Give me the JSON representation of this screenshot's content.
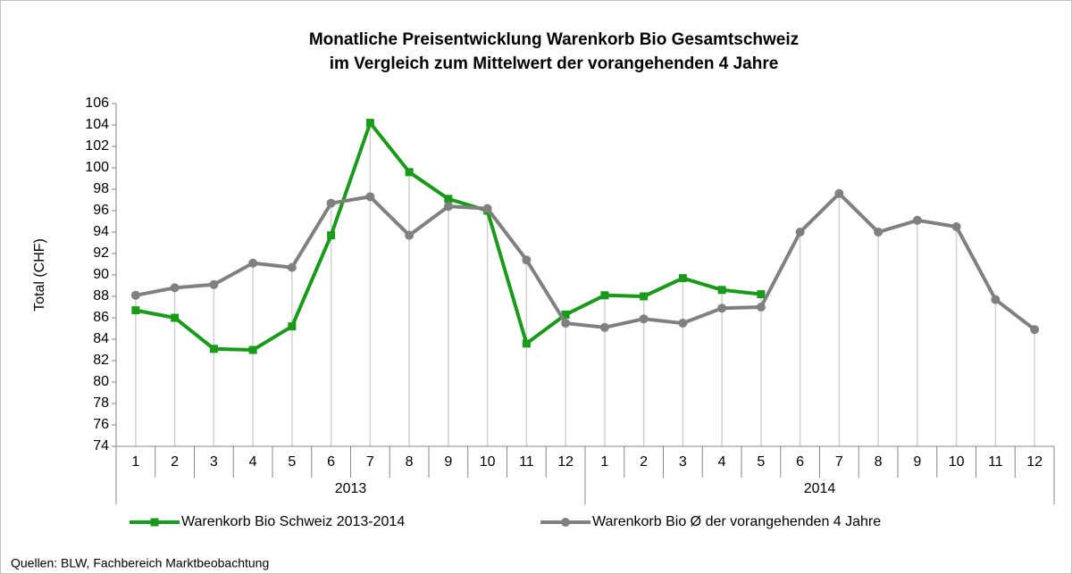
{
  "chart_data": {
    "type": "line",
    "title": [
      "Monatliche Preisentwicklung Warenkorb Bio Gesamtschweiz",
      "im Vergleich zum Mittelwert der vorangehenden 4 Jahre"
    ],
    "y_label": "Total (CHF)",
    "category_groups": [
      {
        "name": "2013",
        "categories": [
          "1",
          "2",
          "3",
          "4",
          "5",
          "6",
          "7",
          "8",
          "9",
          "10",
          "11",
          "12"
        ]
      },
      {
        "name": "2014",
        "categories": [
          "1",
          "2",
          "3",
          "4",
          "5",
          "6",
          "7",
          "8",
          "9",
          "10",
          "11",
          "12"
        ]
      }
    ],
    "series": [
      {
        "name": "Warenkorb Bio Schweiz 2013-2014",
        "color": "#1a9a1a",
        "marker": "square",
        "values": [
          86.7,
          86.0,
          83.1,
          83.0,
          85.2,
          93.7,
          104.2,
          99.6,
          97.1,
          96.0,
          83.6,
          86.3,
          88.1,
          88.0,
          89.7,
          88.6,
          88.2,
          null,
          null,
          null,
          null,
          null,
          null,
          null
        ]
      },
      {
        "name": "Warenkorb Bio Ø der vorangehenden 4 Jahre",
        "color": "#808080",
        "marker": "circle",
        "values": [
          88.1,
          88.8,
          89.1,
          91.1,
          90.7,
          96.7,
          97.3,
          93.7,
          96.4,
          96.2,
          91.4,
          85.5,
          85.1,
          85.9,
          85.5,
          86.9,
          87.0,
          94.0,
          97.6,
          94.0,
          95.1,
          94.5,
          87.7,
          84.9
        ]
      }
    ],
    "ylim": [
      74,
      106
    ],
    "yticks": [
      74,
      76,
      78,
      80,
      82,
      84,
      86,
      88,
      90,
      92,
      94,
      96,
      98,
      100,
      102,
      104,
      106
    ],
    "drop_lines": true,
    "legend": "bottom",
    "source": "Quellen: BLW, Fachbereich Marktbeobachtung"
  }
}
